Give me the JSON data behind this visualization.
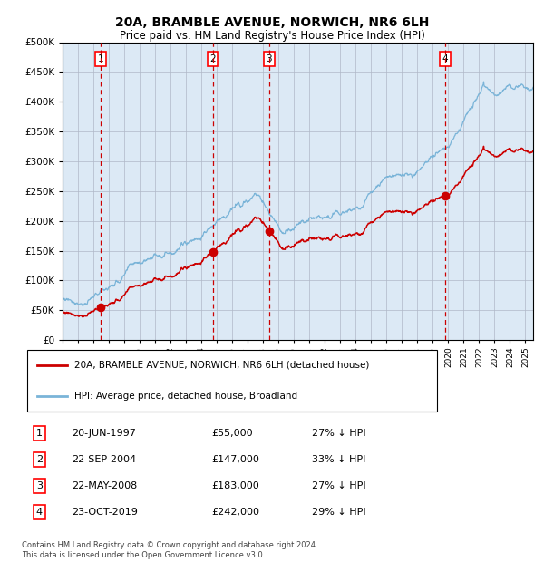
{
  "title": "20A, BRAMBLE AVENUE, NORWICH, NR6 6LH",
  "subtitle": "Price paid vs. HM Land Registry's House Price Index (HPI)",
  "title_fontsize": 10,
  "subtitle_fontsize": 8.5,
  "plot_bg_color": "#dce9f5",
  "fig_bg_color": "#ffffff",
  "ylim": [
    0,
    500000
  ],
  "yticks": [
    0,
    50000,
    100000,
    150000,
    200000,
    250000,
    300000,
    350000,
    400000,
    450000,
    500000
  ],
  "xlim_start": 1995.0,
  "xlim_end": 2025.5,
  "hpi_color": "#7ab4d8",
  "price_color": "#cc0000",
  "dashed_line_color": "#cc0000",
  "sale_points": [
    {
      "year": 1997.47,
      "price": 55000,
      "label": "1"
    },
    {
      "year": 2004.73,
      "price": 147000,
      "label": "2"
    },
    {
      "year": 2008.39,
      "price": 183000,
      "label": "3"
    },
    {
      "year": 2019.81,
      "price": 242000,
      "label": "4"
    }
  ],
  "legend_entries": [
    {
      "label": "20A, BRAMBLE AVENUE, NORWICH, NR6 6LH (detached house)",
      "color": "#cc0000"
    },
    {
      "label": "HPI: Average price, detached house, Broadland",
      "color": "#7ab4d8"
    }
  ],
  "table_rows": [
    {
      "num": "1",
      "date": "20-JUN-1997",
      "price": "£55,000",
      "pct": "27% ↓ HPI"
    },
    {
      "num": "2",
      "date": "22-SEP-2004",
      "price": "£147,000",
      "pct": "33% ↓ HPI"
    },
    {
      "num": "3",
      "date": "22-MAY-2008",
      "price": "£183,000",
      "pct": "27% ↓ HPI"
    },
    {
      "num": "4",
      "date": "23-OCT-2019",
      "price": "£242,000",
      "pct": "29% ↓ HPI"
    }
  ],
  "footer": "Contains HM Land Registry data © Crown copyright and database right 2024.\nThis data is licensed under the Open Government Licence v3.0."
}
